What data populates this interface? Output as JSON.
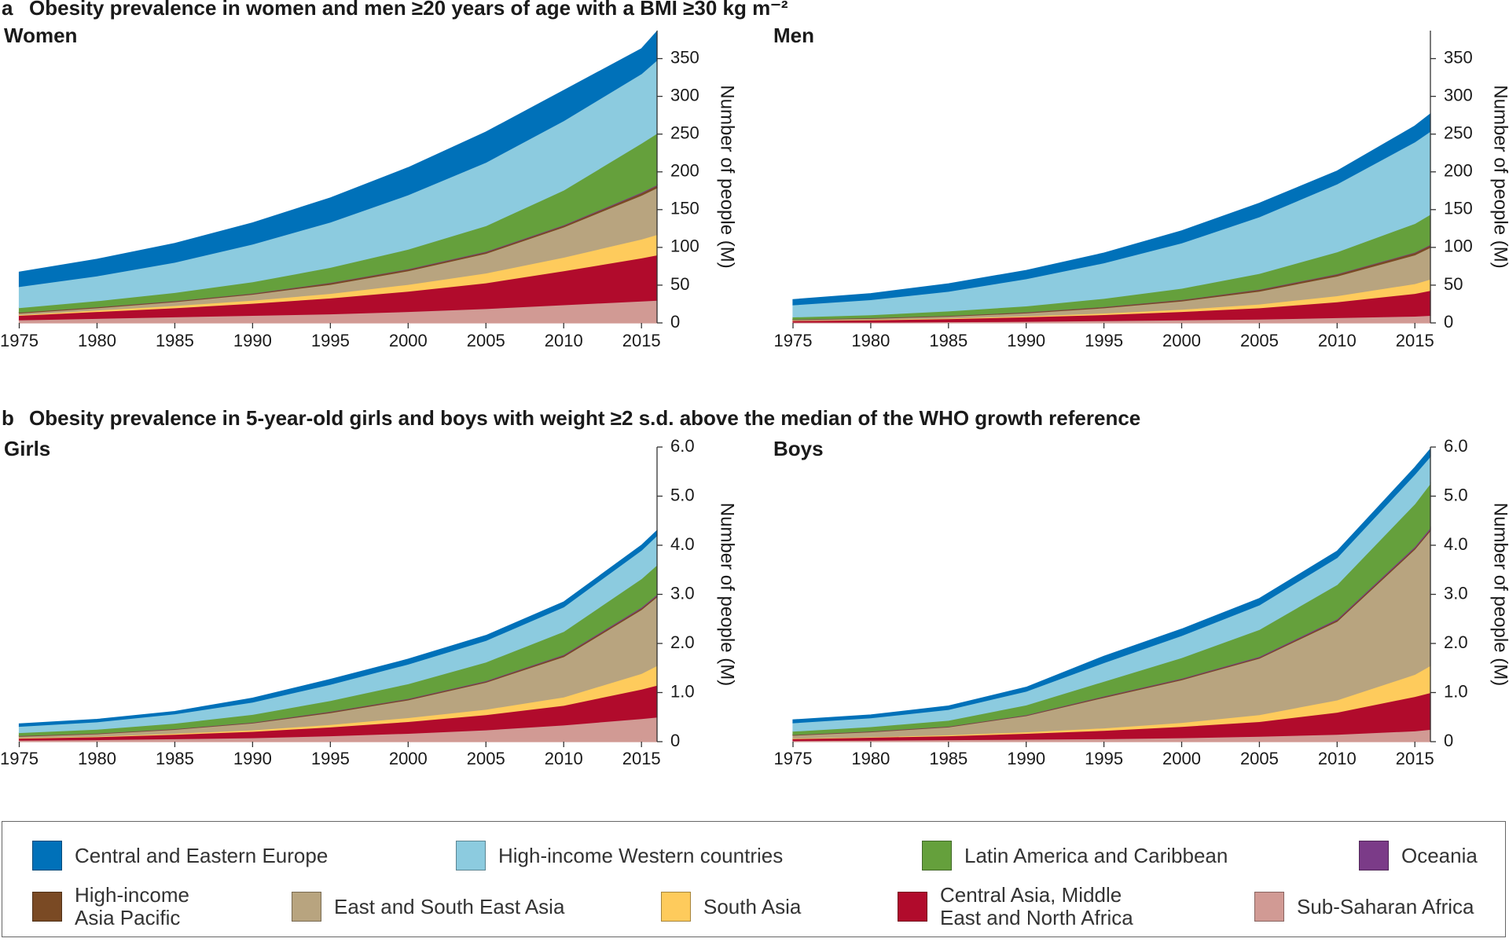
{
  "panels": [
    {
      "label": "a",
      "title": "Obesity prevalence in women and men ≥20 years of age with a BMI ≥30 kg m⁻²"
    },
    {
      "label": "b",
      "title": "Obesity prevalence in 5-year-old girls and boys with weight ≥2 s.d. above the median of the WHO growth reference"
    }
  ],
  "chart_data": [
    {
      "type": "area",
      "stacked": true,
      "title": "Women",
      "y_label": "Number of people (M)",
      "x": [
        1975,
        1980,
        1985,
        1990,
        1995,
        2000,
        2005,
        2010,
        2015,
        2016
      ],
      "xlim": [
        1975,
        2016
      ],
      "xticks": [
        1975,
        1980,
        1985,
        1990,
        1995,
        2000,
        2005,
        2010,
        2015
      ],
      "ylim": [
        0,
        387
      ],
      "yticks": [
        0,
        50,
        100,
        150,
        200,
        250,
        300,
        350
      ],
      "series": [
        {
          "name": "Sub-Saharan Africa",
          "color": "#d19a94",
          "values": [
            4,
            6,
            8,
            10,
            12,
            15,
            19,
            24,
            29,
            30
          ]
        },
        {
          "name": "Central Asia, Middle East and North Africa",
          "color": "#b10b2c",
          "values": [
            6,
            9,
            12,
            16,
            21,
            27,
            34,
            45,
            57,
            60
          ]
        },
        {
          "name": "South Asia",
          "color": "#fecb5c",
          "values": [
            1,
            2,
            3,
            4,
            6,
            9,
            13,
            18,
            25,
            27
          ]
        },
        {
          "name": "East and South East Asia",
          "color": "#b8a47f",
          "values": [
            2,
            3,
            5,
            8,
            12,
            18,
            26,
            40,
            58,
            62
          ]
        },
        {
          "name": "High-income Asia Pacific",
          "color": "#7a4a24",
          "values": [
            1,
            1,
            1,
            1,
            2,
            2,
            2,
            2,
            3,
            3
          ]
        },
        {
          "name": "Oceania",
          "color": "#7b3b88",
          "values": [
            0.2,
            0.3,
            0.3,
            0.4,
            0.5,
            0.6,
            0.7,
            0.8,
            1,
            1
          ]
        },
        {
          "name": "Latin America and Caribbean",
          "color": "#65a03c",
          "values": [
            6,
            8,
            11,
            15,
            20,
            26,
            34,
            46,
            65,
            68
          ]
        },
        {
          "name": "High-income Western countries",
          "color": "#8ccbdf",
          "values": [
            28,
            33,
            40,
            50,
            60,
            72,
            84,
            92,
            92,
            97
          ]
        },
        {
          "name": "Central and Eastern Europe",
          "color": "#0071b9",
          "values": [
            19,
            22,
            25,
            28,
            32,
            36,
            40,
            40,
            33,
            38
          ]
        }
      ]
    },
    {
      "type": "area",
      "stacked": true,
      "title": "Men",
      "y_label": "Number of people (M)",
      "x": [
        1975,
        1980,
        1985,
        1990,
        1995,
        2000,
        2005,
        2010,
        2015,
        2016
      ],
      "xlim": [
        1975,
        2016
      ],
      "xticks": [
        1975,
        1980,
        1985,
        1990,
        1995,
        2000,
        2005,
        2010,
        2015
      ],
      "ylim": [
        0,
        387
      ],
      "yticks": [
        0,
        50,
        100,
        150,
        200,
        250,
        300,
        350
      ],
      "series": [
        {
          "name": "Sub-Saharan Africa",
          "color": "#d19a94",
          "values": [
            1,
            1,
            1.5,
            2,
            3,
            4,
            5,
            7,
            9,
            10
          ]
        },
        {
          "name": "Central Asia, Middle East and North Africa",
          "color": "#b10b2c",
          "values": [
            2,
            3,
            4,
            6,
            8,
            11,
            15,
            21,
            30,
            33
          ]
        },
        {
          "name": "South Asia",
          "color": "#fecb5c",
          "values": [
            0.3,
            0.5,
            0.8,
            1.2,
            2,
            3,
            5,
            8,
            13,
            15
          ]
        },
        {
          "name": "East and South East Asia",
          "color": "#b8a47f",
          "values": [
            1,
            1.5,
            2.5,
            4,
            7,
            11,
            17,
            26,
            38,
            42
          ]
        },
        {
          "name": "High-income Asia Pacific",
          "color": "#7a4a24",
          "values": [
            0.5,
            0.6,
            0.8,
            1,
            1.2,
            1.5,
            2,
            2.5,
            3,
            3
          ]
        },
        {
          "name": "Oceania",
          "color": "#7b3b88",
          "values": [
            0.1,
            0.2,
            0.2,
            0.3,
            0.3,
            0.4,
            0.5,
            0.6,
            0.7,
            0.8
          ]
        },
        {
          "name": "Latin America and Caribbean",
          "color": "#65a03c",
          "values": [
            3,
            4,
            6,
            8,
            11,
            15,
            21,
            29,
            38,
            40
          ]
        },
        {
          "name": "High-income Western countries",
          "color": "#8ccbdf",
          "values": [
            16,
            20,
            26,
            36,
            47,
            60,
            75,
            90,
            108,
            110
          ]
        },
        {
          "name": "Central and Eastern Europe",
          "color": "#0071b9",
          "values": [
            7,
            8,
            10,
            11,
            13,
            16,
            18,
            17,
            21,
            23
          ]
        }
      ]
    },
    {
      "type": "area",
      "stacked": true,
      "title": "Girls",
      "y_label": "Number of people (M)",
      "x": [
        1975,
        1980,
        1985,
        1990,
        1995,
        2000,
        2005,
        2010,
        2015,
        2016
      ],
      "xlim": [
        1975,
        2016
      ],
      "xticks": [
        1975,
        1980,
        1985,
        1990,
        1995,
        2000,
        2005,
        2010,
        2015
      ],
      "ylim": [
        0,
        6
      ],
      "yticks": [
        0,
        {
          "value": 1,
          "label": "1.0"
        },
        {
          "value": 2,
          "label": "2.0"
        },
        {
          "value": 3,
          "label": "3.0"
        },
        {
          "value": 4,
          "label": "4.0"
        },
        {
          "value": 5,
          "label": "5.0"
        },
        {
          "value": 6,
          "label": "6.0"
        }
      ],
      "series": [
        {
          "name": "Sub-Saharan Africa",
          "color": "#d19a94",
          "values": [
            0.03,
            0.04,
            0.06,
            0.08,
            0.12,
            0.17,
            0.24,
            0.34,
            0.47,
            0.5
          ]
        },
        {
          "name": "Central Asia, Middle East and North Africa",
          "color": "#b10b2c",
          "values": [
            0.04,
            0.06,
            0.09,
            0.13,
            0.18,
            0.24,
            0.31,
            0.4,
            0.6,
            0.65
          ]
        },
        {
          "name": "South Asia",
          "color": "#fecb5c",
          "values": [
            0.01,
            0.01,
            0.02,
            0.03,
            0.05,
            0.08,
            0.11,
            0.17,
            0.32,
            0.4
          ]
        },
        {
          "name": "East and South East Asia",
          "color": "#b8a47f",
          "values": [
            0.03,
            0.05,
            0.08,
            0.14,
            0.24,
            0.36,
            0.55,
            0.82,
            1.3,
            1.4
          ]
        },
        {
          "name": "High-income Asia Pacific",
          "color": "#7a4a24",
          "values": [
            0.01,
            0.01,
            0.01,
            0.01,
            0.02,
            0.02,
            0.02,
            0.03,
            0.03,
            0.03
          ]
        },
        {
          "name": "Oceania",
          "color": "#7b3b88",
          "values": [
            0.003,
            0.004,
            0.005,
            0.006,
            0.008,
            0.01,
            0.012,
            0.015,
            0.02,
            0.02
          ]
        },
        {
          "name": "Latin America and Caribbean",
          "color": "#65a03c",
          "values": [
            0.06,
            0.08,
            0.11,
            0.16,
            0.22,
            0.3,
            0.38,
            0.47,
            0.58,
            0.6
          ]
        },
        {
          "name": "High-income Western countries",
          "color": "#8ccbdf",
          "values": [
            0.13,
            0.15,
            0.19,
            0.25,
            0.33,
            0.4,
            0.44,
            0.5,
            0.58,
            0.6
          ]
        },
        {
          "name": "Central and Eastern Europe",
          "color": "#0071b9",
          "values": [
            0.05,
            0.05,
            0.05,
            0.08,
            0.1,
            0.1,
            0.1,
            0.1,
            0.1,
            0.1
          ]
        }
      ]
    },
    {
      "type": "area",
      "stacked": true,
      "title": "Boys",
      "y_label": "Number of people (M)",
      "x": [
        1975,
        1980,
        1985,
        1990,
        1995,
        2000,
        2005,
        2010,
        2015,
        2016
      ],
      "xlim": [
        1975,
        2016
      ],
      "xticks": [
        1975,
        1980,
        1985,
        1990,
        1995,
        2000,
        2005,
        2010,
        2015
      ],
      "ylim": [
        0,
        6
      ],
      "yticks": [
        0,
        {
          "value": 1,
          "label": "1.0"
        },
        {
          "value": 2,
          "label": "2.0"
        },
        {
          "value": 3,
          "label": "3.0"
        },
        {
          "value": 4,
          "label": "4.0"
        },
        {
          "value": 5,
          "label": "5.0"
        },
        {
          "value": 6,
          "label": "6.0"
        }
      ],
      "series": [
        {
          "name": "Sub-Saharan Africa",
          "color": "#d19a94",
          "values": [
            0.02,
            0.03,
            0.04,
            0.05,
            0.06,
            0.08,
            0.11,
            0.15,
            0.22,
            0.25
          ]
        },
        {
          "name": "Central Asia, Middle East and North Africa",
          "color": "#b10b2c",
          "values": [
            0.04,
            0.06,
            0.08,
            0.12,
            0.17,
            0.23,
            0.3,
            0.45,
            0.7,
            0.75
          ]
        },
        {
          "name": "South Asia",
          "color": "#fecb5c",
          "values": [
            0.01,
            0.01,
            0.02,
            0.03,
            0.05,
            0.08,
            0.14,
            0.25,
            0.45,
            0.55
          ]
        },
        {
          "name": "East and South East Asia",
          "color": "#b8a47f",
          "values": [
            0.06,
            0.1,
            0.16,
            0.33,
            0.62,
            0.87,
            1.15,
            1.6,
            2.55,
            2.75
          ]
        },
        {
          "name": "High-income Asia Pacific",
          "color": "#7a4a24",
          "values": [
            0.01,
            0.01,
            0.01,
            0.01,
            0.02,
            0.02,
            0.02,
            0.03,
            0.03,
            0.03
          ]
        },
        {
          "name": "Oceania",
          "color": "#7b3b88",
          "values": [
            0.004,
            0.005,
            0.006,
            0.008,
            0.01,
            0.012,
            0.015,
            0.02,
            0.025,
            0.03
          ]
        },
        {
          "name": "Latin America and Caribbean",
          "color": "#65a03c",
          "values": [
            0.07,
            0.09,
            0.12,
            0.2,
            0.3,
            0.42,
            0.55,
            0.7,
            0.87,
            0.9
          ]
        },
        {
          "name": "High-income Western countries",
          "color": "#8ccbdf",
          "values": [
            0.17,
            0.18,
            0.22,
            0.28,
            0.38,
            0.45,
            0.5,
            0.55,
            0.6,
            0.55
          ]
        },
        {
          "name": "Central and Eastern Europe",
          "color": "#0071b9",
          "values": [
            0.06,
            0.06,
            0.07,
            0.08,
            0.13,
            0.13,
            0.13,
            0.13,
            0.14,
            0.15
          ]
        }
      ]
    }
  ]
}
